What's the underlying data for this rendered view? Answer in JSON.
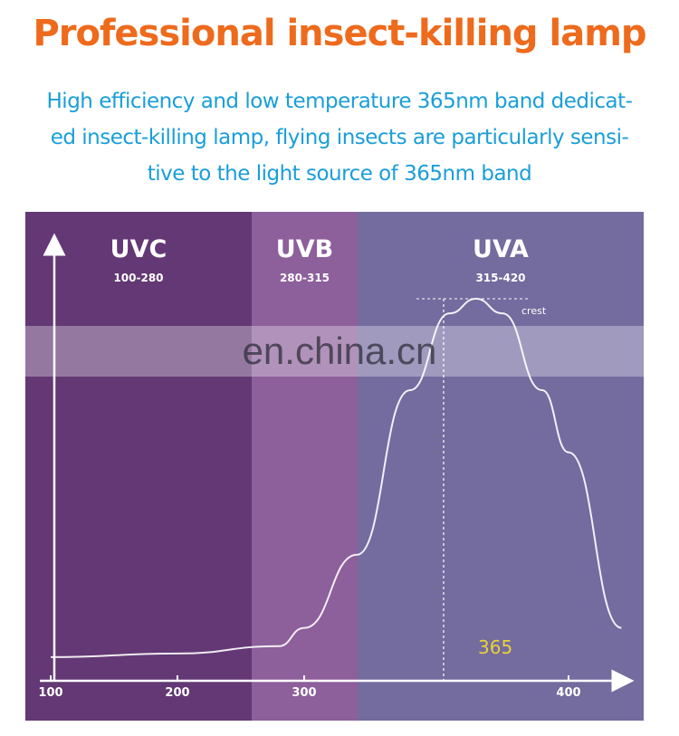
{
  "header": {
    "title": "Professional insect-killing lamp",
    "subtitle_lines": [
      "High efficiency and low temperature 365nm band dedicat-",
      "ed insect-killing lamp, flying insects are particularly sensi-",
      "tive to the light source of 365nm band"
    ]
  },
  "chart": {
    "bands": [
      {
        "name": "UVC",
        "range": "100-280",
        "color": "#633874"
      },
      {
        "name": "UVB",
        "range": "280-315",
        "color": "#8d5f9b"
      },
      {
        "name": "UVA",
        "range": "315-420",
        "color": "#746b9f"
      }
    ],
    "x_ticks": [
      "100",
      "200",
      "300",
      "400"
    ],
    "peak_label": "365",
    "crest_label": "crest"
  },
  "watermark": "en.china.cn",
  "colors": {
    "title": "#ee6a1c",
    "subtitle": "#1a9ed9",
    "peak_label": "#e8d23a"
  },
  "chart_data": {
    "type": "line",
    "title": "",
    "xlabel": "",
    "ylabel": "",
    "xlim": [
      100,
      420
    ],
    "x_ticks": [
      100,
      200,
      300,
      400
    ],
    "series": [
      {
        "x": [
          100,
          200,
          280,
          300,
          320,
          340,
          355,
          365,
          375,
          390,
          400,
          420
        ],
        "y": [
          0.02,
          0.03,
          0.05,
          0.1,
          0.3,
          0.75,
          0.96,
          1.0,
          0.96,
          0.75,
          0.58,
          0.1
        ]
      }
    ],
    "peak_x": 365
  }
}
